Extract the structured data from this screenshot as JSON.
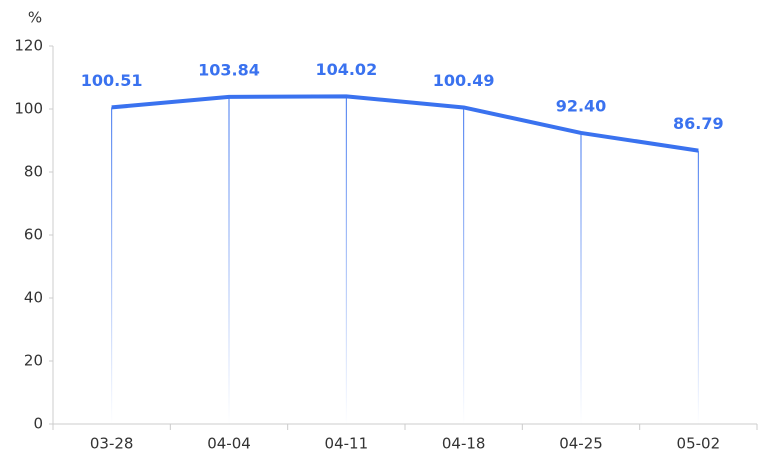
{
  "chart_data": {
    "type": "line",
    "y_label": "%",
    "categories": [
      "03-28",
      "04-04",
      "04-11",
      "04-18",
      "04-25",
      "05-02"
    ],
    "values": [
      100.51,
      103.84,
      104.02,
      100.49,
      92.4,
      86.79
    ],
    "value_labels": [
      "100.51",
      "103.84",
      "104.02",
      "100.49",
      "92.40",
      "86.79"
    ],
    "color": "#3a72ef",
    "ylim": [
      0,
      120
    ],
    "yticks": [
      0,
      20,
      40,
      60,
      80,
      100,
      120
    ],
    "grid": false
  }
}
